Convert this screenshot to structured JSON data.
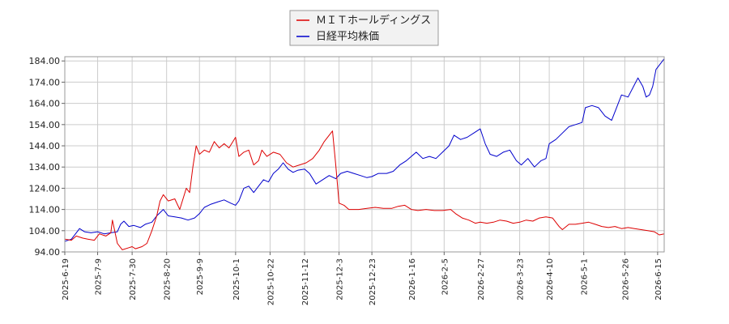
{
  "chart_data": {
    "type": "line",
    "title": "",
    "xlabel": "",
    "ylabel": "",
    "x_range": [
      "2025-06-19",
      "2026-06-19"
    ],
    "ylim": [
      94,
      186
    ],
    "y_ticks": [
      "94.00",
      "104.00",
      "114.00",
      "124.00",
      "134.00",
      "144.00",
      "154.00",
      "164.00",
      "174.00",
      "184.00"
    ],
    "x_ticks": [
      "2025-6-19",
      "2025-7-9",
      "2025-7-30",
      "2025-8-20",
      "2025-9-9",
      "2025-10-1",
      "2025-10-22",
      "2025-11-12",
      "2025-12-3",
      "2025-12-23",
      "2026-1-16",
      "2026-2-5",
      "2026-2-27",
      "2026-3-23",
      "2026-4-10",
      "2026-5-1",
      "2026-5-26",
      "2026-6-15"
    ],
    "grid": true,
    "legend_position": "top-center",
    "series": [
      {
        "name": "ＭＩＴホールディングス",
        "color": "#dd0000",
        "points": [
          [
            "2025-06-19",
            100
          ],
          [
            "2025-06-23",
            99.5
          ],
          [
            "2025-06-26",
            101.5
          ],
          [
            "2025-06-30",
            100.5
          ],
          [
            "2025-07-03",
            100
          ],
          [
            "2025-07-07",
            99.5
          ],
          [
            "2025-07-10",
            102.5
          ],
          [
            "2025-07-14",
            101.5
          ],
          [
            "2025-07-17",
            103
          ],
          [
            "2025-07-18",
            109
          ],
          [
            "2025-07-21",
            98
          ],
          [
            "2025-07-24",
            95
          ],
          [
            "2025-07-28",
            96
          ],
          [
            "2025-07-30",
            96.5
          ],
          [
            "2025-08-01",
            95.5
          ],
          [
            "2025-08-05",
            96.5
          ],
          [
            "2025-08-08",
            98
          ],
          [
            "2025-08-11",
            104
          ],
          [
            "2025-08-14",
            111
          ],
          [
            "2025-08-16",
            118
          ],
          [
            "2025-08-18",
            121
          ],
          [
            "2025-08-21",
            118
          ],
          [
            "2025-08-25",
            119
          ],
          [
            "2025-08-28",
            114
          ],
          [
            "2025-09-01",
            124
          ],
          [
            "2025-09-03",
            122
          ],
          [
            "2025-09-05",
            134
          ],
          [
            "2025-09-07",
            144
          ],
          [
            "2025-09-09",
            140
          ],
          [
            "2025-09-12",
            142
          ],
          [
            "2025-09-15",
            141
          ],
          [
            "2025-09-18",
            146
          ],
          [
            "2025-09-21",
            143
          ],
          [
            "2025-09-24",
            145
          ],
          [
            "2025-09-27",
            143
          ],
          [
            "2025-10-01",
            148
          ],
          [
            "2025-10-03",
            139
          ],
          [
            "2025-10-06",
            141
          ],
          [
            "2025-10-09",
            142
          ],
          [
            "2025-10-12",
            135
          ],
          [
            "2025-10-15",
            137
          ],
          [
            "2025-10-17",
            142
          ],
          [
            "2025-10-20",
            139
          ],
          [
            "2025-10-24",
            141
          ],
          [
            "2025-10-28",
            140
          ],
          [
            "2025-11-01",
            136
          ],
          [
            "2025-11-05",
            134
          ],
          [
            "2025-11-09",
            135
          ],
          [
            "2025-11-13",
            136
          ],
          [
            "2025-11-17",
            138
          ],
          [
            "2025-11-21",
            142
          ],
          [
            "2025-11-24",
            146
          ],
          [
            "2025-11-27",
            149
          ],
          [
            "2025-11-29",
            151
          ],
          [
            "2025-12-01",
            135
          ],
          [
            "2025-12-03",
            117
          ],
          [
            "2025-12-06",
            116
          ],
          [
            "2025-12-09",
            114
          ],
          [
            "2025-12-15",
            114
          ],
          [
            "2025-12-20",
            114.5
          ],
          [
            "2025-12-25",
            115
          ],
          [
            "2025-12-30",
            114.5
          ],
          [
            "2026-01-04",
            114.5
          ],
          [
            "2026-01-08",
            115.5
          ],
          [
            "2026-01-12",
            116
          ],
          [
            "2026-01-16",
            114
          ],
          [
            "2026-01-20",
            113.5
          ],
          [
            "2026-01-25",
            114
          ],
          [
            "2026-01-30",
            113.5
          ],
          [
            "2026-02-04",
            113.5
          ],
          [
            "2026-02-09",
            114
          ],
          [
            "2026-02-12",
            112
          ],
          [
            "2026-02-16",
            110
          ],
          [
            "2026-02-20",
            109
          ],
          [
            "2026-02-24",
            107.5
          ],
          [
            "2026-02-27",
            108
          ],
          [
            "2026-03-03",
            107.5
          ],
          [
            "2026-03-07",
            108
          ],
          [
            "2026-03-11",
            109
          ],
          [
            "2026-03-15",
            108.5
          ],
          [
            "2026-03-19",
            107.5
          ],
          [
            "2026-03-23",
            108
          ],
          [
            "2026-03-27",
            109
          ],
          [
            "2026-03-31",
            108.5
          ],
          [
            "2026-04-04",
            110
          ],
          [
            "2026-04-08",
            110.5
          ],
          [
            "2026-04-12",
            110
          ],
          [
            "2026-04-16",
            106
          ],
          [
            "2026-04-18",
            104.5
          ],
          [
            "2026-04-22",
            107
          ],
          [
            "2026-04-26",
            107
          ],
          [
            "2026-04-30",
            107.5
          ],
          [
            "2026-05-04",
            108
          ],
          [
            "2026-05-08",
            107
          ],
          [
            "2026-05-12",
            106
          ],
          [
            "2026-05-16",
            105.5
          ],
          [
            "2026-05-20",
            106
          ],
          [
            "2026-05-24",
            105
          ],
          [
            "2026-05-28",
            105.5
          ],
          [
            "2026-06-01",
            105
          ],
          [
            "2026-06-05",
            104.5
          ],
          [
            "2026-06-09",
            104
          ],
          [
            "2026-06-13",
            103.5
          ],
          [
            "2026-06-16",
            102
          ],
          [
            "2026-06-19",
            102.5
          ]
        ]
      },
      {
        "name": "日経平均株価",
        "color": "#0000cc",
        "points": [
          [
            "2025-06-19",
            99
          ],
          [
            "2025-06-23",
            100
          ],
          [
            "2025-06-26",
            103
          ],
          [
            "2025-06-28",
            105
          ],
          [
            "2025-07-01",
            103.5
          ],
          [
            "2025-07-05",
            103
          ],
          [
            "2025-07-09",
            103.5
          ],
          [
            "2025-07-13",
            102.5
          ],
          [
            "2025-07-17",
            103
          ],
          [
            "2025-07-21",
            103.5
          ],
          [
            "2025-07-23",
            107
          ],
          [
            "2025-07-25",
            108.5
          ],
          [
            "2025-07-28",
            106
          ],
          [
            "2025-07-31",
            106.5
          ],
          [
            "2025-08-04",
            105.5
          ],
          [
            "2025-08-07",
            107
          ],
          [
            "2025-08-11",
            108
          ],
          [
            "2025-08-14",
            111
          ],
          [
            "2025-08-18",
            114
          ],
          [
            "2025-08-21",
            111
          ],
          [
            "2025-08-25",
            110.5
          ],
          [
            "2025-08-29",
            110
          ],
          [
            "2025-09-02",
            109
          ],
          [
            "2025-09-06",
            110
          ],
          [
            "2025-09-09",
            112
          ],
          [
            "2025-09-12",
            115
          ],
          [
            "2025-09-16",
            116.5
          ],
          [
            "2025-09-20",
            117.5
          ],
          [
            "2025-09-24",
            118.5
          ],
          [
            "2025-09-28",
            117
          ],
          [
            "2025-10-01",
            116
          ],
          [
            "2025-10-03",
            118
          ],
          [
            "2025-10-06",
            124
          ],
          [
            "2025-10-09",
            125
          ],
          [
            "2025-10-12",
            122
          ],
          [
            "2025-10-15",
            125
          ],
          [
            "2025-10-18",
            128
          ],
          [
            "2025-10-21",
            127
          ],
          [
            "2025-10-24",
            131
          ],
          [
            "2025-10-27",
            133
          ],
          [
            "2025-10-30",
            136
          ],
          [
            "2025-11-02",
            133
          ],
          [
            "2025-11-05",
            131.5
          ],
          [
            "2025-11-08",
            132.5
          ],
          [
            "2025-11-12",
            133
          ],
          [
            "2025-11-15",
            131
          ],
          [
            "2025-11-19",
            126
          ],
          [
            "2025-11-23",
            128
          ],
          [
            "2025-11-27",
            130
          ],
          [
            "2025-12-01",
            128.5
          ],
          [
            "2025-12-04",
            131
          ],
          [
            "2025-12-08",
            132
          ],
          [
            "2025-12-12",
            131
          ],
          [
            "2025-12-16",
            130
          ],
          [
            "2025-12-20",
            129
          ],
          [
            "2025-12-23",
            129.5
          ],
          [
            "2025-12-27",
            131
          ],
          [
            "2026-01-01",
            131
          ],
          [
            "2026-01-05",
            132
          ],
          [
            "2026-01-09",
            135
          ],
          [
            "2026-01-13",
            137
          ],
          [
            "2026-01-16",
            139
          ],
          [
            "2026-01-19",
            141
          ],
          [
            "2026-01-23",
            138
          ],
          [
            "2026-01-27",
            139
          ],
          [
            "2026-01-31",
            138
          ],
          [
            "2026-02-04",
            141
          ],
          [
            "2026-02-08",
            144
          ],
          [
            "2026-02-11",
            149
          ],
          [
            "2026-02-15",
            147
          ],
          [
            "2026-02-19",
            148
          ],
          [
            "2026-02-23",
            150
          ],
          [
            "2026-02-27",
            152
          ],
          [
            "2026-03-02",
            145
          ],
          [
            "2026-03-05",
            140
          ],
          [
            "2026-03-09",
            139
          ],
          [
            "2026-03-13",
            141
          ],
          [
            "2026-03-17",
            142
          ],
          [
            "2026-03-21",
            137
          ],
          [
            "2026-03-24",
            135
          ],
          [
            "2026-03-28",
            138
          ],
          [
            "2026-04-01",
            134
          ],
          [
            "2026-04-05",
            137
          ],
          [
            "2026-04-08",
            138
          ],
          [
            "2026-04-10",
            145
          ],
          [
            "2026-04-14",
            147
          ],
          [
            "2026-04-18",
            150
          ],
          [
            "2026-04-22",
            153
          ],
          [
            "2026-04-26",
            154
          ],
          [
            "2026-04-30",
            155
          ],
          [
            "2026-05-02",
            162
          ],
          [
            "2026-05-06",
            163
          ],
          [
            "2026-05-10",
            162
          ],
          [
            "2026-05-14",
            158
          ],
          [
            "2026-05-18",
            156
          ],
          [
            "2026-05-21",
            162
          ],
          [
            "2026-05-24",
            168
          ],
          [
            "2026-05-28",
            167
          ],
          [
            "2026-06-01",
            173
          ],
          [
            "2026-06-03",
            176
          ],
          [
            "2026-06-06",
            172
          ],
          [
            "2026-06-08",
            167
          ],
          [
            "2026-06-10",
            168
          ],
          [
            "2026-06-12",
            172
          ],
          [
            "2026-06-14",
            180
          ],
          [
            "2026-06-17",
            183
          ],
          [
            "2026-06-19",
            185
          ]
        ]
      }
    ]
  }
}
